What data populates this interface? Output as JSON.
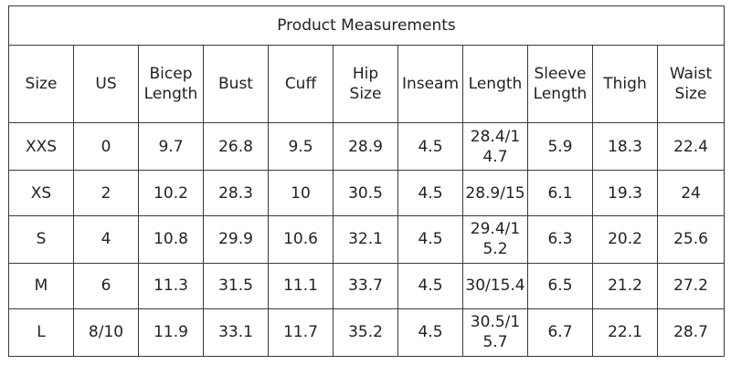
{
  "table": {
    "title": "Product Measurements",
    "headers": [
      "Size",
      "US",
      "Bicep Length",
      "Bust",
      "Cuff",
      "Hip Size",
      "Inseam",
      "Length",
      "Sleeve Length",
      "Thigh",
      "Waist Size"
    ],
    "rows": [
      [
        "XXS",
        "0",
        "9.7",
        "26.8",
        "9.5",
        "28.9",
        "4.5",
        "28.4/14.7",
        "5.9",
        "18.3",
        "22.4"
      ],
      [
        "XS",
        "2",
        "10.2",
        "28.3",
        "10",
        "30.5",
        "4.5",
        "28.9/15",
        "6.1",
        "19.3",
        "24"
      ],
      [
        "S",
        "4",
        "10.8",
        "29.9",
        "10.6",
        "32.1",
        "4.5",
        "29.4/15.2",
        "6.3",
        "20.2",
        "25.6"
      ],
      [
        "M",
        "6",
        "11.3",
        "31.5",
        "11.1",
        "33.7",
        "4.5",
        "30/15.4",
        "6.5",
        "21.2",
        "27.2"
      ],
      [
        "L",
        "8/10",
        "11.9",
        "33.1",
        "11.7",
        "35.2",
        "4.5",
        "30.5/15.7",
        "6.7",
        "22.1",
        "28.7"
      ]
    ]
  }
}
